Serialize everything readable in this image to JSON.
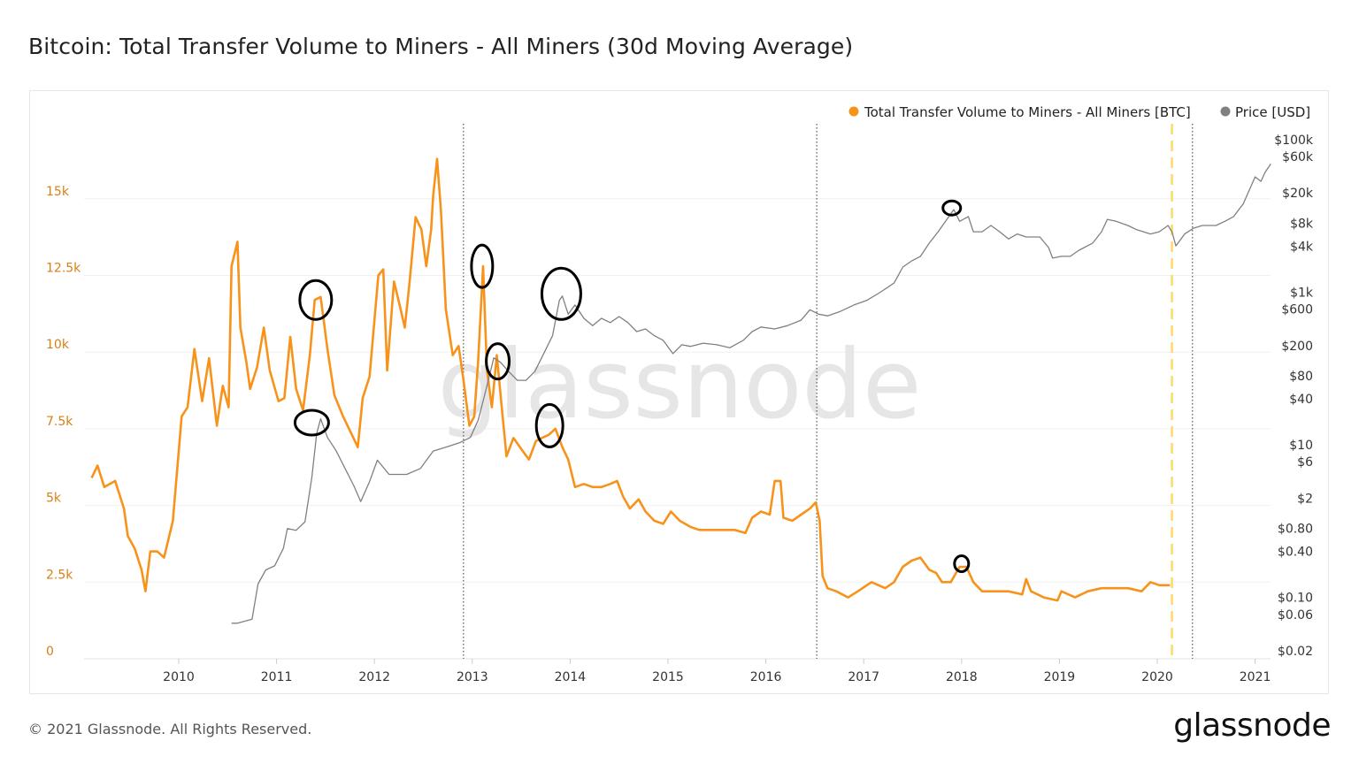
{
  "title": "Bitcoin: Total Transfer Volume to Miners - All Miners (30d Moving Average)",
  "footer": "© 2021 Glassnode. All Rights Reserved.",
  "logo_text": "glassnode",
  "watermark": "glassnode",
  "colors": {
    "volume": "#f7931a",
    "price": "#808080",
    "halving_line": "#333333",
    "marker_line": "#ffd966",
    "left_axis_text": "#d97f14",
    "circles": "#000000"
  },
  "chart_data": {
    "type": "line",
    "title": "Bitcoin: Total Transfer Volume to Miners - All Miners (30d Moving Average)",
    "x_axis": {
      "ticks": [
        "2010",
        "2011",
        "2012",
        "2013",
        "2014",
        "2015",
        "2016",
        "2017",
        "2018",
        "2019",
        "2020",
        "2021"
      ],
      "range": [
        2009.0,
        2021.15
      ]
    },
    "y_left": {
      "ticks": [
        "0",
        "2.5k",
        "5k",
        "7.5k",
        "10k",
        "12.5k",
        "15k"
      ],
      "tick_values": [
        0,
        2500,
        5000,
        7500,
        10000,
        12500,
        15000
      ],
      "range": [
        0,
        17500
      ],
      "scale": "linear",
      "grid": true
    },
    "y_right": {
      "ticks": [
        "$0.02",
        "$0.06",
        "$0.10",
        "$0.40",
        "$0.80",
        "$2",
        "$6",
        "$10",
        "$40",
        "$80",
        "$200",
        "$600",
        "$1k",
        "$4k",
        "$8k",
        "$20k",
        "$60k",
        "$100k"
      ],
      "tick_values": [
        0.02,
        0.06,
        0.1,
        0.4,
        0.8,
        2,
        6,
        10,
        40,
        80,
        200,
        600,
        1000,
        4000,
        8000,
        20000,
        60000,
        100000
      ],
      "scale": "log"
    },
    "legend": {
      "placement": "top-right",
      "entries": [
        "Total Transfer Volume to Miners - All Miners [BTC]",
        "Price [USD]"
      ]
    },
    "series": [
      {
        "name": "Total Transfer Volume to Miners - All Miners [BTC]",
        "axis": "left",
        "x": [
          2009.11,
          2009.17,
          2009.24,
          2009.35,
          2009.44,
          2009.48,
          2009.55,
          2009.62,
          2009.66,
          2009.71,
          2009.78,
          2009.85,
          2009.94,
          2010.03,
          2010.09,
          2010.16,
          2010.24,
          2010.31,
          2010.39,
          2010.45,
          2010.51,
          2010.54,
          2010.6,
          2010.63,
          2010.69,
          2010.73,
          2010.8,
          2010.87,
          2010.93,
          2011.02,
          2011.08,
          2011.14,
          2011.2,
          2011.27,
          2011.34,
          2011.39,
          2011.45,
          2011.52,
          2011.59,
          2011.68,
          2011.77,
          2011.83,
          2011.88,
          2011.95,
          2012.04,
          2012.09,
          2012.13,
          2012.2,
          2012.26,
          2012.31,
          2012.36,
          2012.42,
          2012.48,
          2012.53,
          2012.58,
          2012.6,
          2012.64,
          2012.68,
          2012.73,
          2012.8,
          2012.86,
          2012.91,
          2012.97,
          2013.02,
          2013.06,
          2013.11,
          2013.15,
          2013.2,
          2013.25,
          2013.31,
          2013.35,
          2013.42,
          2013.51,
          2013.58,
          2013.65,
          2013.71,
          2013.78,
          2013.85,
          2013.92,
          2013.98,
          2014.05,
          2014.14,
          2014.23,
          2014.32,
          2014.41,
          2014.48,
          2014.54,
          2014.61,
          2014.7,
          2014.77,
          2014.86,
          2014.95,
          2015.03,
          2015.12,
          2015.23,
          2015.32,
          2015.41,
          2015.54,
          2015.68,
          2015.79,
          2015.86,
          2015.95,
          2016.04,
          2016.09,
          2016.15,
          2016.18,
          2016.27,
          2016.36,
          2016.45,
          2016.51,
          2016.55,
          2016.58,
          2016.63,
          2016.72,
          2016.84,
          2016.94,
          2017.08,
          2017.22,
          2017.31,
          2017.4,
          2017.49,
          2017.58,
          2017.67,
          2017.74,
          2017.8,
          2017.89,
          2017.98,
          2018.05,
          2018.12,
          2018.21,
          2018.35,
          2018.48,
          2018.62,
          2018.66,
          2018.71,
          2018.84,
          2018.98,
          2019.02,
          2019.16,
          2019.29,
          2019.43,
          2019.57,
          2019.7,
          2019.84,
          2019.93,
          2020.02,
          2020.13
        ],
        "values": [
          5900,
          6300,
          5600,
          5800,
          4900,
          4000,
          3600,
          2900,
          2200,
          3500,
          3500,
          3300,
          4500,
          7900,
          8200,
          10100,
          8400,
          9800,
          7600,
          8900,
          8200,
          12800,
          13600,
          10800,
          9700,
          8800,
          9500,
          10800,
          9400,
          8400,
          8500,
          10500,
          8800,
          8100,
          9900,
          11700,
          11800,
          10100,
          8600,
          7900,
          7300,
          6900,
          8500,
          9200,
          12500,
          12700,
          9400,
          12300,
          11500,
          10800,
          12300,
          14400,
          14000,
          12800,
          14000,
          15100,
          16300,
          14600,
          11400,
          9900,
          10200,
          9100,
          7600,
          7900,
          9700,
          12800,
          9400,
          8200,
          9900,
          7900,
          6600,
          7200,
          6800,
          6500,
          7100,
          7200,
          7300,
          7500,
          6900,
          6500,
          5600,
          5700,
          5600,
          5600,
          5700,
          5800,
          5300,
          4900,
          5200,
          4800,
          4500,
          4400,
          4800,
          4500,
          4300,
          4200,
          4200,
          4200,
          4200,
          4100,
          4600,
          4800,
          4700,
          5800,
          5800,
          4600,
          4500,
          4700,
          4900,
          5100,
          4500,
          2700,
          2300,
          2200,
          2000,
          2200,
          2500,
          2300,
          2500,
          3000,
          3200,
          3300,
          2900,
          2800,
          2500,
          2500,
          3000,
          3000,
          2500,
          2200,
          2200,
          2200,
          2100,
          2600,
          2200,
          2000,
          1900,
          2200,
          2000,
          2200,
          2300,
          2300,
          2300,
          2200,
          2500,
          2400,
          2400
        ]
      },
      {
        "name": "Price [USD]",
        "axis": "right",
        "x": [
          2010.54,
          2010.6,
          2010.75,
          2010.81,
          2010.89,
          2010.98,
          2011.07,
          2011.11,
          2011.2,
          2011.29,
          2011.36,
          2011.41,
          2011.45,
          2011.52,
          2011.61,
          2011.7,
          2011.79,
          2011.86,
          2011.95,
          2012.03,
          2012.15,
          2012.33,
          2012.47,
          2012.6,
          2012.74,
          2012.88,
          2012.98,
          2013.06,
          2013.13,
          2013.22,
          2013.29,
          2013.37,
          2013.46,
          2013.55,
          2013.64,
          2013.73,
          2013.82,
          2013.89,
          2013.92,
          2013.98,
          2014.05,
          2014.14,
          2014.23,
          2014.32,
          2014.41,
          2014.5,
          2014.59,
          2014.68,
          2014.77,
          2014.86,
          2014.95,
          2015.05,
          2015.14,
          2015.23,
          2015.36,
          2015.5,
          2015.63,
          2015.77,
          2015.86,
          2015.95,
          2016.09,
          2016.22,
          2016.36,
          2016.45,
          2016.54,
          2016.63,
          2016.76,
          2016.9,
          2017.03,
          2017.17,
          2017.31,
          2017.4,
          2017.49,
          2017.58,
          2017.67,
          2017.76,
          2017.85,
          2017.92,
          2017.98,
          2018.07,
          2018.12,
          2018.21,
          2018.3,
          2018.39,
          2018.48,
          2018.57,
          2018.66,
          2018.8,
          2018.89,
          2018.93,
          2019.02,
          2019.11,
          2019.2,
          2019.34,
          2019.43,
          2019.49,
          2019.58,
          2019.7,
          2019.79,
          2019.93,
          2020.02,
          2020.11,
          2020.15,
          2020.19,
          2020.28,
          2020.37,
          2020.46,
          2020.6,
          2020.69,
          2020.78,
          2020.88,
          2020.94,
          2021.0,
          2021.06,
          2021.1,
          2021.16
        ],
        "values": [
          0.046,
          0.046,
          0.052,
          0.15,
          0.23,
          0.26,
          0.44,
          0.8,
          0.76,
          0.98,
          3.7,
          14,
          22,
          12.5,
          8.3,
          4.9,
          2.9,
          1.8,
          3.3,
          6.3,
          4.1,
          4.1,
          4.9,
          8.3,
          9.4,
          10.8,
          12.5,
          21,
          47,
          138,
          120,
          92,
          70,
          70,
          92,
          157,
          270,
          780,
          890,
          515,
          680,
          455,
          365,
          455,
          400,
          480,
          400,
          305,
          330,
          270,
          235,
          157,
          205,
          195,
          215,
          205,
          187,
          235,
          305,
          350,
          330,
          365,
          430,
          590,
          515,
          490,
          560,
          680,
          780,
          1000,
          1320,
          2140,
          2570,
          2950,
          4400,
          6200,
          9000,
          12100,
          8500,
          9800,
          6200,
          6200,
          7500,
          6200,
          5000,
          5800,
          5300,
          5300,
          3850,
          2800,
          2950,
          2950,
          3550,
          4400,
          6200,
          9000,
          8500,
          7500,
          6600,
          5800,
          6200,
          7500,
          6200,
          4050,
          5800,
          6900,
          7500,
          7500,
          8500,
          9800,
          14500,
          21800,
          32500,
          28400,
          37000,
          48000
        ]
      }
    ],
    "vertical_lines": [
      {
        "x": 2012.91,
        "style": "dotted"
      },
      {
        "x": 2016.52,
        "style": "dotted"
      },
      {
        "x": 2020.15,
        "style": "dashed-yellow"
      },
      {
        "x": 2020.36,
        "style": "dotted"
      }
    ],
    "annotations_circles": [
      {
        "x": 2011.4,
        "y": 11700,
        "axis": "left"
      },
      {
        "x": 2011.36,
        "y": 7700,
        "axis": "left"
      },
      {
        "x": 2013.1,
        "y": 12800,
        "axis": "left"
      },
      {
        "x": 2013.26,
        "y": 9700,
        "axis": "left"
      },
      {
        "x": 2013.91,
        "y": 11900,
        "axis": "left"
      },
      {
        "x": 2013.79,
        "y": 7600,
        "axis": "left"
      },
      {
        "x": 2017.9,
        "y": 14700,
        "axis": "left"
      },
      {
        "x": 2018.0,
        "y": 3100,
        "axis": "left"
      }
    ]
  }
}
